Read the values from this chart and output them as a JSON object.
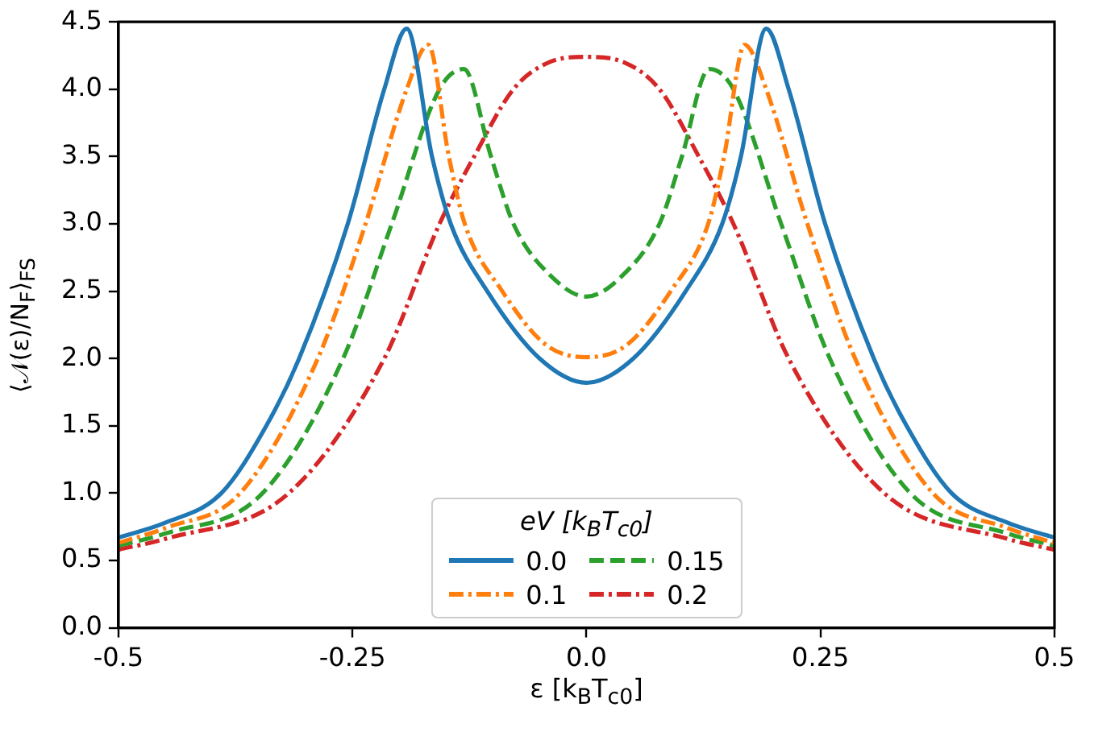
{
  "chart_data": {
    "type": "line",
    "xlabel": "ε [k$_{B}$T$_{c0}$]",
    "ylabel": "⟨𝒩(ε)/N$_{F}$⟩$_{FS}$",
    "legend_title": "eV [k$_{B}$T$_{c0}$]",
    "xlim": [
      -0.5,
      0.5
    ],
    "xticks": [
      -0.5,
      -0.25,
      {
        "value": 0,
        "label": "0.0"
      },
      0.25,
      0.5
    ],
    "ylim": [
      0,
      4.5
    ],
    "yticks": [
      {
        "value": 0,
        "label": "0.0"
      },
      0.5,
      {
        "value": 1,
        "label": "1.0"
      },
      1.5,
      {
        "value": 2,
        "label": "2.0"
      },
      2.5,
      {
        "value": 3,
        "label": "3.0"
      },
      3.5,
      {
        "value": 4,
        "label": "4.0"
      },
      4.5
    ],
    "grid": false,
    "legend": "bottom",
    "marker": "none",
    "series": [
      {
        "name": "0.0",
        "color": "#1f77b4",
        "line_style": "solid",
        "x": [
          -0.5,
          -0.45,
          -0.39,
          -0.342,
          -0.307,
          -0.255,
          -0.216,
          -0.192,
          -0.165,
          -0.145,
          -0.106,
          -0.05,
          0,
          0.05,
          0.106,
          0.145,
          0.165,
          0.192,
          0.216,
          0.255,
          0.307,
          0.342,
          0.39,
          0.45,
          0.5
        ],
        "values": [
          0.67,
          0.78,
          1.0,
          1.5,
          2.0,
          3.0,
          4.0,
          4.45,
          3.5,
          3.0,
          2.5,
          2.0,
          1.82,
          2.0,
          2.5,
          3.0,
          3.5,
          4.45,
          4.0,
          3.0,
          2.0,
          1.5,
          1.0,
          0.78,
          0.67
        ]
      },
      {
        "name": "0.1",
        "color": "#ff7f0e",
        "line_style": "dashdot",
        "x": [
          -0.5,
          -0.45,
          -0.37,
          -0.287,
          -0.236,
          -0.192,
          -0.169,
          -0.147,
          -0.13,
          -0.09,
          -0.043,
          0,
          0.043,
          0.09,
          0.13,
          0.147,
          0.169,
          0.192,
          0.236,
          0.287,
          0.37,
          0.45,
          0.5
        ],
        "values": [
          0.63,
          0.74,
          1.0,
          2.0,
          3.0,
          4.0,
          4.33,
          3.5,
          3.0,
          2.5,
          2.1,
          2.01,
          2.1,
          2.5,
          3.0,
          3.5,
          4.33,
          4.0,
          3.0,
          2.0,
          1.0,
          0.74,
          0.63
        ]
      },
      {
        "name": "0.15",
        "color": "#2ca02c",
        "line_style": "dashed",
        "x": [
          -0.5,
          -0.45,
          -0.346,
          -0.26,
          -0.208,
          -0.157,
          -0.131,
          -0.102,
          -0.078,
          -0.036,
          0,
          0.036,
          0.078,
          0.102,
          0.131,
          0.157,
          0.208,
          0.26,
          0.346,
          0.45,
          0.5
        ],
        "values": [
          0.61,
          0.7,
          1.0,
          2.0,
          3.0,
          4.0,
          4.15,
          3.5,
          3.0,
          2.6,
          2.46,
          2.6,
          3.0,
          3.5,
          4.15,
          4.0,
          3.0,
          2.0,
          1.0,
          0.7,
          0.61
        ]
      },
      {
        "name": "0.2",
        "color": "#d62728",
        "line_style": "dashdot",
        "x": [
          -0.5,
          -0.45,
          -0.318,
          -0.216,
          -0.157,
          -0.12,
          -0.078,
          -0.04,
          0,
          0.04,
          0.078,
          0.12,
          0.157,
          0.216,
          0.318,
          0.45,
          0.5
        ],
        "values": [
          0.58,
          0.66,
          1.0,
          2.0,
          3.0,
          3.5,
          4.0,
          4.2,
          4.24,
          4.2,
          4.0,
          3.5,
          3.0,
          2.0,
          1.0,
          0.66,
          0.58
        ]
      }
    ]
  }
}
